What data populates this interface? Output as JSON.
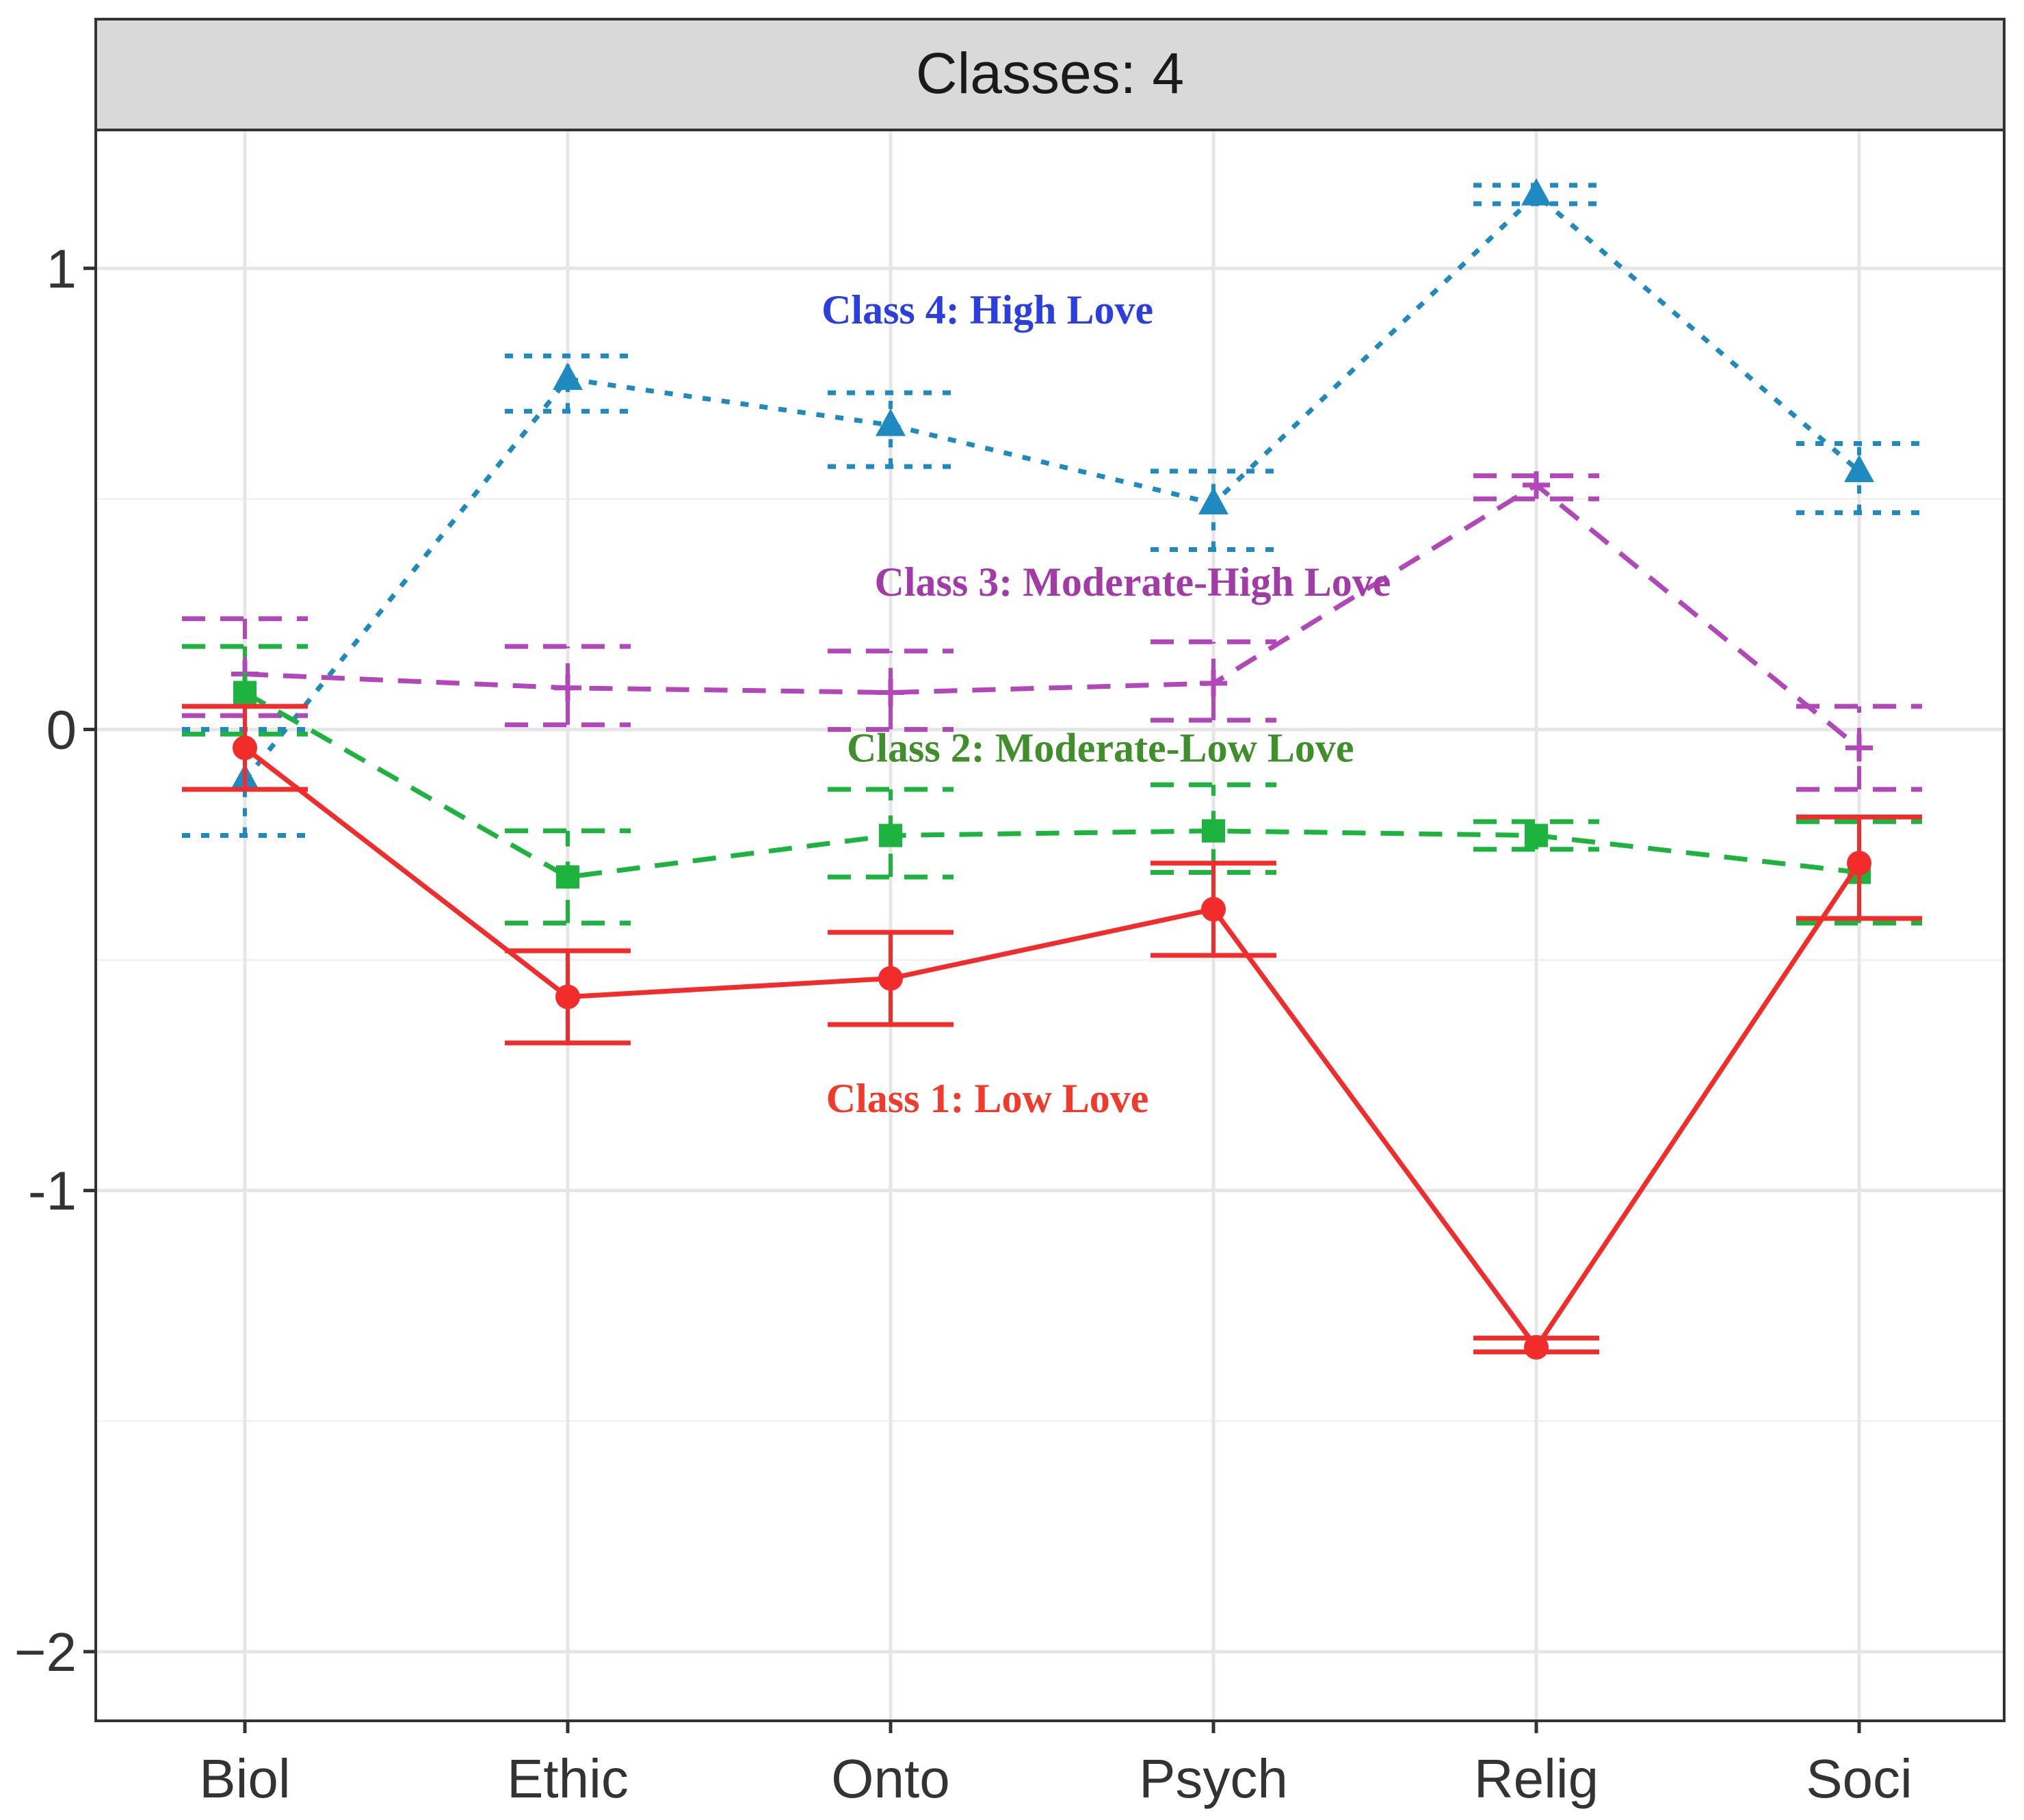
{
  "chart_data": {
    "type": "line",
    "title": "Classes: 4",
    "xlabel": "",
    "ylabel": "",
    "categories": [
      "Biol",
      "Ethic",
      "Onto",
      "Psych",
      "Relig",
      "Soci"
    ],
    "ylim": [
      -2.15,
      1.3
    ],
    "yticks": [
      -2,
      -1,
      0,
      1
    ],
    "ytick_labels": [
      "−2",
      "-1",
      "0",
      "1"
    ],
    "grid": true,
    "series": [
      {
        "name": "Class 4: High Love",
        "color": "#1f8ac0",
        "marker": "triangle",
        "dash": "dotted",
        "values": [
          -0.11,
          0.76,
          0.66,
          0.49,
          1.16,
          0.56
        ],
        "err_low": [
          -0.23,
          0.69,
          0.57,
          0.39,
          1.14,
          0.47
        ],
        "err_high": [
          0.0,
          0.81,
          0.73,
          0.56,
          1.18,
          0.62
        ]
      },
      {
        "name": "Class 3: Moderate-High Love",
        "color": "#b147b8",
        "marker": "plus",
        "dash": "dashed",
        "values": [
          0.12,
          0.09,
          0.08,
          0.1,
          0.53,
          -0.04
        ],
        "err_low": [
          0.03,
          0.01,
          0.0,
          0.02,
          0.5,
          -0.13
        ],
        "err_high": [
          0.24,
          0.18,
          0.17,
          0.19,
          0.55,
          0.05
        ]
      },
      {
        "name": "Class 2: Moderate-Low Love",
        "color": "#1db33f",
        "marker": "square",
        "dash": "dashed",
        "values": [
          0.08,
          -0.32,
          -0.23,
          -0.22,
          -0.23,
          -0.31
        ],
        "err_low": [
          -0.01,
          -0.42,
          -0.32,
          -0.31,
          -0.26,
          -0.42
        ],
        "err_high": [
          0.18,
          -0.22,
          -0.13,
          -0.12,
          -0.2,
          -0.2
        ]
      },
      {
        "name": "Class 1: Low Love",
        "color": "#f22b2b",
        "marker": "circle",
        "dash": "solid",
        "values": [
          -0.04,
          -0.58,
          -0.54,
          -0.39,
          -1.34,
          -0.29
        ],
        "err_low": [
          -0.13,
          -0.68,
          -0.64,
          -0.49,
          -1.35,
          -0.41
        ],
        "err_high": [
          0.05,
          -0.48,
          -0.44,
          -0.29,
          -1.32,
          -0.19
        ]
      }
    ],
    "annotations": [
      {
        "text": "Class 4:  High Love",
        "color": "#2b3fe0",
        "at": [
          2.3,
          0.88
        ]
      },
      {
        "text": "Class 3: Moderate-High Love",
        "color": "#a23aa8",
        "at": [
          2.75,
          0.29
        ]
      },
      {
        "text": "Class 2: Moderate-Low Love",
        "color": "#3f8f2a",
        "at": [
          2.65,
          -0.07
        ]
      },
      {
        "text": "Class 1: Low Love",
        "color": "#f23a2a",
        "at": [
          2.3,
          -0.83
        ]
      }
    ]
  }
}
